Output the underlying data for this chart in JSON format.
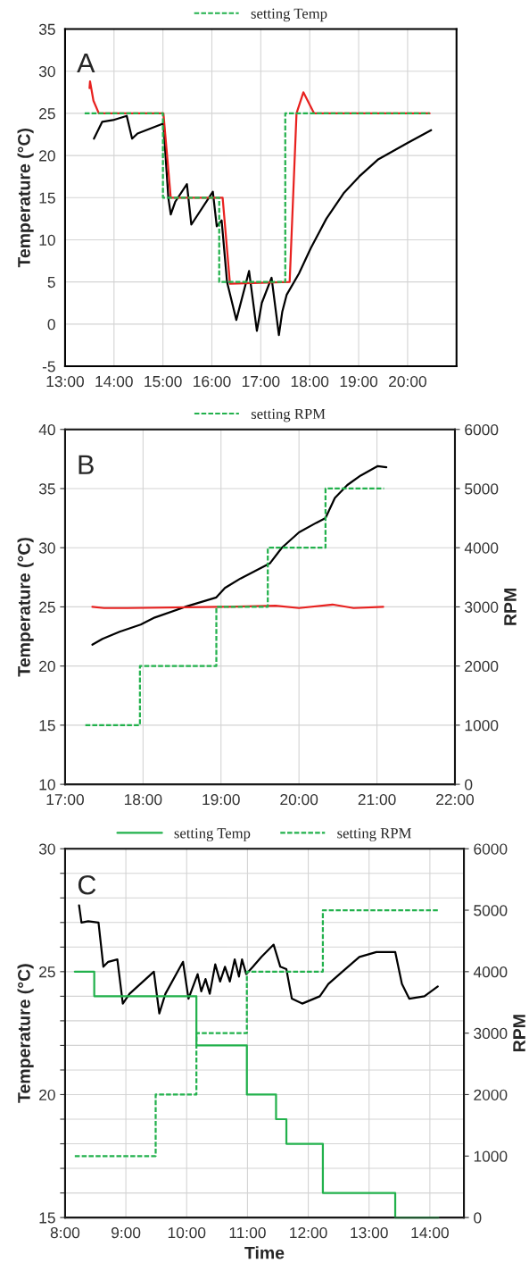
{
  "chart_data": [
    {
      "type": "line",
      "ylabel": "Temperature (°C)",
      "annotations": [
        "A"
      ],
      "xlim": [
        13,
        21
      ],
      "xticks": [
        {
          "value": 13,
          "label": "13:00"
        },
        {
          "value": 14,
          "label": "14:00"
        },
        {
          "value": 15,
          "label": "15:00"
        },
        {
          "value": 16,
          "label": "16:00"
        },
        {
          "value": 17,
          "label": "17:00"
        },
        {
          "value": 18,
          "label": "18:00"
        },
        {
          "value": 19,
          "label": "19:00"
        },
        {
          "value": 20,
          "label": "20:00"
        },
        {
          "value": 21,
          "label": null
        }
      ],
      "ylim": [
        -5,
        35
      ],
      "yticks": [
        -5,
        0,
        5,
        10,
        15,
        20,
        25,
        30,
        35
      ],
      "grid": true,
      "legend": "top",
      "series": [
        {
          "color": "#000000",
          "x": [
            13.59,
            13.76,
            13.98,
            14.26,
            14.37,
            14.48,
            15.01,
            15.11,
            15.16,
            15.25,
            15.49,
            15.58,
            16.02,
            16.1,
            16.2,
            16.31,
            16.5,
            16.76,
            16.92,
            17.02,
            17.22,
            17.37,
            17.44,
            17.53,
            17.78,
            18.02,
            18.34,
            18.69,
            19.01,
            19.39,
            20.0,
            20.48
          ],
          "values": [
            22,
            24,
            24.2,
            24.7,
            22,
            22.6,
            23.8,
            15,
            13,
            14.5,
            16.6,
            11.8,
            15.7,
            11.6,
            12.3,
            5,
            0.5,
            6.3,
            -0.8,
            2.5,
            5.5,
            -1.3,
            1.5,
            3.5,
            6,
            9,
            12.5,
            15.5,
            17.5,
            19.5,
            21.5,
            23
          ]
        },
        {
          "color": "#e8211f",
          "x": [
            13.5,
            13.51,
            13.58,
            13.69,
            15.01,
            15.16,
            16.22,
            16.37,
            17.59,
            17.73,
            17.87,
            18.09,
            20.45
          ],
          "values": [
            28,
            28.8,
            26.5,
            25,
            25,
            15,
            15,
            4.8,
            5,
            25,
            27.5,
            25,
            25
          ]
        },
        {
          "name": "setting Temp",
          "color": "#22b14c",
          "line_style": "dashed",
          "x": [
            13.4,
            15.0,
            15.0,
            16.15,
            16.15,
            17.5,
            17.5,
            20.45
          ],
          "values": [
            25,
            25,
            15,
            15,
            5,
            5,
            25,
            25
          ]
        }
      ]
    },
    {
      "type": "line",
      "ylabel": "Temperature (°C)",
      "y2label": "RPM",
      "annotations": [
        "B"
      ],
      "xlim": [
        17,
        22
      ],
      "xticks": [
        {
          "value": 17,
          "label": "17:00"
        },
        {
          "value": 18,
          "label": "18:00"
        },
        {
          "value": 19,
          "label": "19:00"
        },
        {
          "value": 20,
          "label": "20:00"
        },
        {
          "value": 21,
          "label": "21:00"
        },
        {
          "value": 22,
          "label": "22:00"
        }
      ],
      "ylim": [
        10,
        40
      ],
      "yticks": [
        10,
        15,
        20,
        25,
        30,
        35,
        40
      ],
      "y2lim": [
        0,
        6000
      ],
      "y2ticks": [
        0,
        1000,
        2000,
        3000,
        4000,
        5000,
        6000
      ],
      "grid": true,
      "legend": "top",
      "series": [
        {
          "color": "#000000",
          "x": [
            17.35,
            17.48,
            17.7,
            17.97,
            18.15,
            18.54,
            18.94,
            19.05,
            19.25,
            19.63,
            19.78,
            20.0,
            20.22,
            20.34,
            20.46,
            20.62,
            20.79,
            21.01,
            21.12
          ],
          "values": [
            21.8,
            22.3,
            22.9,
            23.5,
            24.1,
            25,
            25.8,
            26.6,
            27.4,
            28.7,
            30,
            31.3,
            32.1,
            32.5,
            34.2,
            35.3,
            36.1,
            36.9,
            36.8
          ]
        },
        {
          "color": "#e8211f",
          "x": [
            17.35,
            17.5,
            17.8,
            19.0,
            19.7,
            20.0,
            20.43,
            20.7,
            21.08
          ],
          "values": [
            25.0,
            24.9,
            24.9,
            25.0,
            25.1,
            24.9,
            25.2,
            24.9,
            25.0
          ]
        },
        {
          "name": "setting RPM",
          "color": "#22b14c",
          "line_style": "dashed",
          "axis": "y2",
          "x": [
            17.26,
            17.96,
            17.96,
            18.94,
            18.94,
            19.6,
            19.6,
            20.34,
            20.34,
            21.09
          ],
          "values": [
            1000,
            1000,
            2000,
            2000,
            3000,
            3000,
            4000,
            4000,
            5000,
            5000
          ]
        }
      ]
    },
    {
      "type": "line",
      "xlabel": "Time",
      "ylabel": "Temperature (°C)",
      "y2label": "RPM",
      "annotations": [
        "C"
      ],
      "xlim": [
        8,
        14.56
      ],
      "xticks": [
        {
          "value": 8,
          "label": "8:00"
        },
        {
          "value": 9,
          "label": "9:00"
        },
        {
          "value": 10,
          "label": "10:00"
        },
        {
          "value": 11,
          "label": "11:00"
        },
        {
          "value": 12,
          "label": "12:00"
        },
        {
          "value": 13,
          "label": "13:00"
        },
        {
          "value": 14,
          "label": "14:00"
        }
      ],
      "ylim": [
        15,
        30
      ],
      "yticks": [
        15,
        {
          "value": 16,
          "label": null
        },
        {
          "value": 17,
          "label": null
        },
        {
          "value": 18,
          "label": null
        },
        {
          "value": 19,
          "label": null
        },
        20,
        {
          "value": 21,
          "label": null
        },
        {
          "value": 22,
          "label": null
        },
        {
          "value": 23,
          "label": null
        },
        {
          "value": 24,
          "label": null
        },
        25,
        {
          "value": 26,
          "label": null
        },
        {
          "value": 27,
          "label": null
        },
        {
          "value": 28,
          "label": null
        },
        {
          "value": 29,
          "label": null
        },
        30
      ],
      "y2lim": [
        0,
        6000
      ],
      "y2ticks": [
        0,
        1000,
        2000,
        3000,
        4000,
        5000,
        6000
      ],
      "grid": true,
      "legend": "top",
      "series": [
        {
          "color": "#000000",
          "x": [
            8.23,
            8.27,
            8.38,
            8.55,
            8.63,
            8.71,
            8.86,
            8.95,
            9.06,
            9.46,
            9.55,
            9.65,
            9.94,
            10.03,
            10.18,
            10.24,
            10.31,
            10.38,
            10.47,
            10.55,
            10.63,
            10.71,
            10.79,
            10.86,
            10.91,
            10.98,
            11.09,
            11.23,
            11.43,
            11.54,
            11.64,
            11.73,
            11.9,
            12.19,
            12.33,
            12.56,
            12.84,
            13.12,
            13.43,
            13.54,
            13.66,
            13.91,
            14.13
          ],
          "values": [
            27.7,
            27,
            27.05,
            27,
            25.2,
            25.4,
            25.5,
            23.7,
            24.1,
            25.0,
            23.3,
            24.1,
            25.4,
            23.9,
            24.9,
            24.2,
            24.7,
            24.1,
            25.3,
            24.6,
            25.2,
            24.6,
            25.5,
            24.8,
            25.5,
            24.9,
            25.2,
            25.6,
            26.1,
            25.2,
            25.1,
            23.9,
            23.7,
            24.0,
            24.5,
            25.0,
            25.6,
            25.8,
            25.8,
            24.5,
            23.9,
            24.0,
            24.4
          ]
        },
        {
          "name": "setting Temp",
          "color": "#22b14c",
          "x": [
            8.16,
            8.48,
            8.48,
            10.16,
            10.16,
            10.99,
            10.99,
            11.47,
            11.47,
            11.64,
            11.64,
            12.24,
            12.24,
            13.43,
            13.43,
            14.14
          ],
          "values": [
            25,
            25,
            24,
            24,
            22,
            22,
            20,
            20,
            19,
            19,
            18,
            18,
            16,
            16,
            15,
            15
          ]
        },
        {
          "name": "setting RPM",
          "color": "#22b14c",
          "line_style": "dashed",
          "axis": "y2",
          "x": [
            8.16,
            9.49,
            9.49,
            10.16,
            10.16,
            10.99,
            10.99,
            12.24,
            12.24,
            14.14
          ],
          "values": [
            1000,
            1000,
            2000,
            2000,
            3000,
            3000,
            4000,
            4000,
            5000,
            5000
          ]
        }
      ]
    }
  ]
}
